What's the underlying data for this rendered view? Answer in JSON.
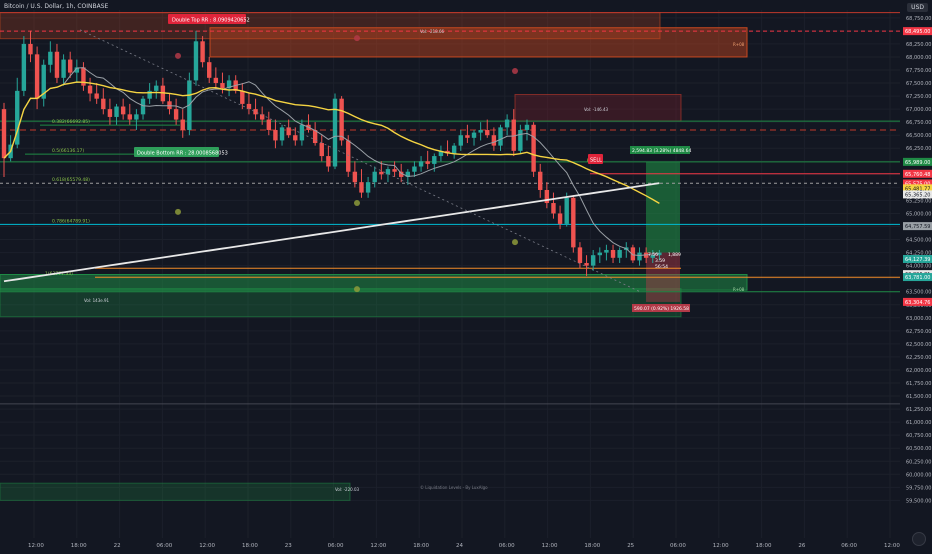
{
  "header": {
    "symbol_title": "Bitcoin / U.S. Dollar, 1h, COINBASE",
    "currency": "USD"
  },
  "footer": {
    "credit": "© Liquidation Levels - By LuxAlgo"
  },
  "colors": {
    "background": "#131722",
    "grid": "#1c202b",
    "up_candle": "#26a69a",
    "down_candle": "#ef5350",
    "sma_white": "#e8e8e8",
    "sma_yellow": "#f5d442",
    "sma_gray": "#9aa0a6",
    "zone_red": "#c8481f",
    "zone_green": "#1f8a45",
    "orange_line": "#f28c28",
    "sell_label": "#e0243a",
    "buy_label": "#2e9e5a"
  },
  "chart_data": {
    "type": "candlestick",
    "symbol": "BTCUSD",
    "timeframe": "1h",
    "ylim": [
      59450,
      68900
    ],
    "y_ticks": [
      68750,
      68500,
      68250,
      68000,
      67750,
      67500,
      67250,
      67000,
      66750,
      66500,
      66250,
      66000,
      65750,
      65500,
      65250,
      65000,
      64750,
      64500,
      64250,
      64000,
      63750,
      63500,
      63250,
      63000,
      62750,
      62500,
      62250,
      62000,
      61750,
      61500,
      61250,
      61000,
      60750,
      60500,
      60250,
      60000,
      59750,
      59500
    ],
    "y_tick_labels": [
      "68,750.00",
      "68,500.00",
      "68,250.00",
      "68,000.00",
      "67,750.00",
      "67,500.00",
      "67,250.00",
      "67,000.00",
      "66,750.00",
      "66,500.00",
      "66,250.00",
      "66,000.00",
      "65,750.00",
      "65,500.00",
      "65,250.00",
      "65,000.00",
      "64,750.00",
      "64,500.00",
      "64,250.00",
      "64,000.00",
      "63,750.00",
      "63,500.00",
      "63,250.00",
      "63,000.00",
      "62,750.00",
      "62,500.00",
      "62,250.00",
      "62,000.00",
      "61,750.00",
      "61,500.00",
      "61,250.00",
      "61,000.00",
      "60,750.00",
      "60,500.00",
      "60,250.00",
      "60,000.00",
      "59,750.00",
      "59,500.00"
    ],
    "x_ticks": [
      "12:00",
      "18:00",
      "22",
      "06:00",
      "12:00",
      "18:00",
      "23",
      "06:00",
      "12:00",
      "18:00",
      "24",
      "06:00",
      "12:00",
      "18:00",
      "25",
      "06:00",
      "12:00",
      "18:00",
      "26",
      "06:00",
      "12:00"
    ],
    "candles": [
      [
        67000,
        67120,
        65700,
        66060
      ],
      [
        66060,
        66500,
        66000,
        66320
      ],
      [
        66320,
        67600,
        66250,
        67350
      ],
      [
        67350,
        68400,
        67250,
        68250
      ],
      [
        68250,
        68500,
        67900,
        68050
      ],
      [
        68050,
        68200,
        67000,
        67200
      ],
      [
        67200,
        67950,
        67050,
        67850
      ],
      [
        67850,
        68300,
        67700,
        68100
      ],
      [
        68100,
        68250,
        67500,
        67600
      ],
      [
        67600,
        68050,
        67450,
        67950
      ],
      [
        67950,
        68100,
        67600,
        67700
      ],
      [
        67700,
        67950,
        67500,
        67800
      ],
      [
        67800,
        67900,
        67350,
        67450
      ],
      [
        67450,
        67600,
        67150,
        67300
      ],
      [
        67300,
        67500,
        67100,
        67200
      ],
      [
        67200,
        67400,
        66900,
        67000
      ],
      [
        67000,
        67200,
        66700,
        66850
      ],
      [
        66850,
        67100,
        66700,
        67050
      ],
      [
        67050,
        67200,
        66800,
        66900
      ],
      [
        66900,
        67100,
        66700,
        66800
      ],
      [
        66800,
        67000,
        66600,
        66900
      ],
      [
        66900,
        67250,
        66800,
        67200
      ],
      [
        67200,
        67500,
        67100,
        67350
      ],
      [
        67350,
        67550,
        67200,
        67450
      ],
      [
        67450,
        67600,
        67100,
        67150
      ],
      [
        67150,
        67300,
        66900,
        67000
      ],
      [
        67000,
        67200,
        66700,
        66800
      ],
      [
        66800,
        67000,
        66450,
        66600
      ],
      [
        66600,
        67700,
        66500,
        67550
      ],
      [
        67550,
        68500,
        67450,
        68300
      ],
      [
        68300,
        68400,
        67800,
        67900
      ],
      [
        67900,
        68000,
        67500,
        67600
      ],
      [
        67600,
        67800,
        67400,
        67500
      ],
      [
        67500,
        67700,
        67300,
        67400
      ],
      [
        67400,
        67650,
        67250,
        67550
      ],
      [
        67550,
        67650,
        67300,
        67350
      ],
      [
        67350,
        67500,
        67000,
        67100
      ],
      [
        67100,
        67300,
        66900,
        67000
      ],
      [
        67000,
        67200,
        66800,
        66900
      ],
      [
        66900,
        67050,
        66700,
        66800
      ],
      [
        66800,
        66950,
        66500,
        66600
      ],
      [
        66600,
        66800,
        66250,
        66400
      ],
      [
        66400,
        66700,
        66300,
        66650
      ],
      [
        66650,
        66800,
        66450,
        66500
      ],
      [
        66500,
        66650,
        66300,
        66400
      ],
      [
        66400,
        66800,
        66300,
        66700
      ],
      [
        66700,
        66900,
        66550,
        66600
      ],
      [
        66600,
        66750,
        66300,
        66350
      ],
      [
        66350,
        66500,
        66000,
        66100
      ],
      [
        66100,
        66300,
        65800,
        65900
      ],
      [
        65900,
        67300,
        65850,
        67200
      ],
      [
        67200,
        67250,
        66300,
        66400
      ],
      [
        66400,
        66500,
        65700,
        65800
      ],
      [
        65800,
        66000,
        65500,
        65600
      ],
      [
        65600,
        65850,
        65300,
        65400
      ],
      [
        65400,
        65700,
        65300,
        65600
      ],
      [
        65600,
        65900,
        65500,
        65800
      ],
      [
        65800,
        66000,
        65650,
        65750
      ],
      [
        65750,
        65900,
        65600,
        65850
      ],
      [
        65850,
        66000,
        65700,
        65800
      ],
      [
        65800,
        65950,
        65600,
        65700
      ],
      [
        65700,
        65850,
        65550,
        65800
      ],
      [
        65800,
        66000,
        65700,
        65900
      ],
      [
        65900,
        66100,
        65800,
        66000
      ],
      [
        66000,
        66200,
        65850,
        65950
      ],
      [
        65950,
        66150,
        65800,
        66100
      ],
      [
        66100,
        66300,
        66000,
        66200
      ],
      [
        66200,
        66400,
        66100,
        66150
      ],
      [
        66150,
        66350,
        66050,
        66300
      ],
      [
        66300,
        66600,
        66200,
        66500
      ],
      [
        66500,
        66700,
        66350,
        66450
      ],
      [
        66450,
        66600,
        66300,
        66550
      ],
      [
        66550,
        66750,
        66400,
        66600
      ],
      [
        66600,
        66800,
        66450,
        66500
      ],
      [
        66500,
        66650,
        66200,
        66300
      ],
      [
        66300,
        66700,
        66200,
        66650
      ],
      [
        66650,
        66900,
        66500,
        66800
      ],
      [
        66800,
        67000,
        66100,
        66200
      ],
      [
        66200,
        66700,
        66150,
        66600
      ],
      [
        66600,
        66800,
        66400,
        66700
      ],
      [
        66700,
        66750,
        65700,
        65800
      ],
      [
        65800,
        65950,
        65300,
        65450
      ],
      [
        65450,
        65600,
        65100,
        65200
      ],
      [
        65200,
        65400,
        64900,
        65000
      ],
      [
        65000,
        65150,
        64700,
        64800
      ],
      [
        64800,
        65400,
        64750,
        65300
      ],
      [
        65300,
        65350,
        64250,
        64350
      ],
      [
        64350,
        64450,
        63950,
        64050
      ],
      [
        64050,
        64200,
        63800,
        64000
      ],
      [
        64000,
        64300,
        63900,
        64200
      ],
      [
        64200,
        64350,
        64050,
        64250
      ],
      [
        64250,
        64400,
        64100,
        64300
      ],
      [
        64300,
        64400,
        64050,
        64150
      ],
      [
        64150,
        64350,
        64050,
        64300
      ],
      [
        64300,
        64450,
        64150,
        64350
      ],
      [
        64350,
        64400,
        64050,
        64100
      ],
      [
        64100,
        64350,
        64000,
        64250
      ],
      [
        64250,
        64350,
        64050,
        64150
      ],
      [
        64150,
        64300,
        64050,
        64200
      ],
      [
        64200,
        64300,
        64100,
        64250
      ]
    ],
    "price_labels": [
      {
        "price": 68495.0,
        "text": "68,495.00",
        "color": "#f23645"
      },
      {
        "price": 65989.0,
        "text": "65,989.00",
        "color": "#1f8a45"
      },
      {
        "price": 65760.48,
        "text": "65,760.48",
        "color": "#f23645"
      },
      {
        "price": 65575.0,
        "text": "65,575.00",
        "color": "#f23645"
      },
      {
        "price": 65481.77,
        "text": "65,481.77",
        "color": "#f5d442"
      },
      {
        "price": 65365.2,
        "text": "65,365.20",
        "color": "#e8e8e8"
      },
      {
        "price": 64757.59,
        "text": "64,757.59",
        "color": "#9aa0a6"
      },
      {
        "price": 64127.39,
        "text": "64,127.39",
        "color": "#26a69a"
      },
      {
        "price": 63836.81,
        "text": "63,836.81",
        "color": "#e8e8e8"
      },
      {
        "price": 63781.0,
        "text": "63,781.00",
        "color": "#26a69a"
      },
      {
        "price": 63304.76,
        "text": "63,304.76",
        "color": "#f23645"
      }
    ],
    "annotations": [
      {
        "text": "Double Top RR : 8.0909420652",
        "kind": "label-red"
      },
      {
        "text": "Double Bottom RR : 28.0008568053",
        "kind": "label-green"
      },
      {
        "text": "Vol: -218.66",
        "kind": "small"
      },
      {
        "text": "Vol: -146.43",
        "kind": "small"
      },
      {
        "text": "Vol: 143e.91",
        "kind": "small"
      },
      {
        "text": "Vol: -220.03",
        "kind": "small"
      },
      {
        "text": "0.382(66692.85)",
        "kind": "fib"
      },
      {
        "text": "0.5(66136.17)",
        "kind": "fib"
      },
      {
        "text": "0.618(65579.48)",
        "kind": "fib"
      },
      {
        "text": "0.786(64789.91)",
        "kind": "fib"
      },
      {
        "text": "1(63777.33)",
        "kind": "fib"
      },
      {
        "text": "SELL",
        "kind": "sell"
      },
      {
        "text": "2,594.83 (3.28%) 4848.64",
        "kind": "target"
      },
      {
        "text": "590.07 (0.92%) 1926.58",
        "kind": "stop"
      },
      {
        "text": "7.56",
        "kind": "box"
      },
      {
        "text": "1,889",
        "kind": "box"
      },
      {
        "text": "3.59",
        "kind": "box"
      },
      {
        "text": "56:54",
        "kind": "box"
      },
      {
        "text": "R+08",
        "kind": "zone"
      },
      {
        "text": "R+08",
        "kind": "zone"
      }
    ]
  }
}
